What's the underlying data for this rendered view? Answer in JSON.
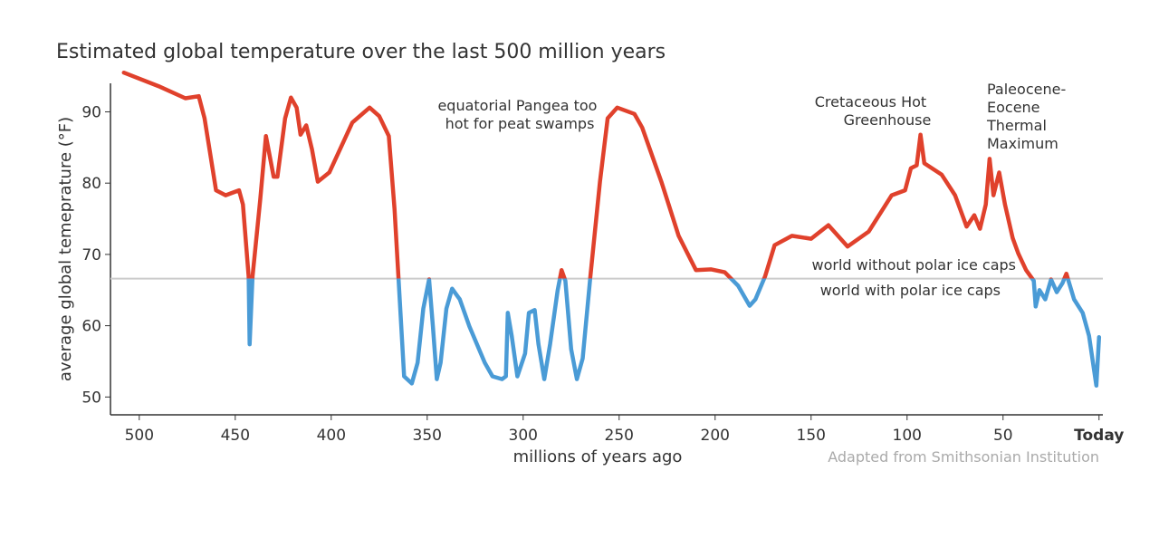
{
  "chart_data": {
    "type": "line",
    "title": "Estimated global temperature over the last 500 million years",
    "x_label": "millions of years ago",
    "y_label": "average global temeprature (°F)",
    "source": "Adapted from Smithsonian Institution",
    "xlim": [
      515,
      -2
    ],
    "ylim": [
      47.5,
      94
    ],
    "xticks": [
      500,
      450,
      400,
      350,
      300,
      250,
      200,
      150,
      100,
      50,
      {
        "value": 0,
        "label": "Today"
      }
    ],
    "yticks": [
      50,
      60,
      70,
      80,
      90
    ],
    "threshold": 66.6,
    "threshold_labels": [
      "world without polar ice caps",
      "world with polar ice caps"
    ],
    "color_above": "#e0412c",
    "color_below": "#4a9bd6",
    "annotations": [
      [
        "equatorial Pangea too",
        "hot for peat swamps"
      ],
      [
        "Cretaceous Hot",
        "Greenhouse"
      ],
      [
        "Paleocene-",
        "Eocene",
        "Thermal",
        "Maximum"
      ]
    ],
    "x": [
      508,
      490,
      476,
      469,
      466,
      460,
      455,
      448,
      446,
      443,
      442.5,
      441,
      437,
      434,
      430,
      428,
      424,
      421,
      418,
      416,
      413,
      410,
      407,
      401,
      389,
      380,
      375,
      370,
      367,
      365,
      362,
      358,
      355,
      352,
      349,
      347,
      345,
      343,
      340,
      337,
      333,
      328,
      320,
      316,
      311,
      309,
      308,
      306,
      303,
      299,
      297,
      294,
      292,
      289,
      286,
      282,
      280,
      278,
      275,
      272,
      269,
      265,
      260,
      256,
      251,
      242,
      238,
      228,
      219,
      210,
      202,
      195,
      188,
      182,
      179,
      174,
      169,
      160,
      150,
      141,
      131,
      120,
      108,
      101,
      98,
      95,
      93,
      91,
      82,
      75,
      69,
      65,
      62,
      59,
      57,
      55,
      52,
      49,
      45,
      42,
      38,
      34,
      33,
      31,
      28,
      25,
      22,
      19,
      17,
      13,
      8.5,
      5.2,
      1.4,
      0
    ],
    "values": [
      95.5,
      93.6,
      91.9,
      92.2,
      89.1,
      79,
      78.3,
      79,
      77,
      66.9,
      57.4,
      66.9,
      77.7,
      86.6,
      80.9,
      80.9,
      89.1,
      92,
      90.6,
      86.8,
      88.1,
      84.7,
      80.2,
      81.5,
      88.5,
      90.6,
      89.4,
      86.6,
      76.4,
      66.9,
      52.9,
      51.9,
      54.8,
      62.4,
      66.5,
      59.9,
      52.5,
      54.8,
      62.4,
      65.2,
      63.7,
      59.9,
      54.8,
      52.9,
      52.5,
      52.9,
      61.8,
      58.6,
      52.9,
      56.1,
      61.8,
      62.2,
      57.4,
      52.5,
      57.4,
      65,
      67.8,
      66.3,
      56.7,
      52.5,
      55.4,
      66.9,
      80.2,
      89.1,
      90.6,
      89.7,
      87.8,
      80.2,
      72.6,
      67.8,
      67.9,
      67.5,
      65.6,
      62.8,
      63.7,
      66.9,
      71.3,
      72.6,
      72.2,
      74.1,
      71.1,
      73.2,
      78.3,
      79,
      82.1,
      82.5,
      86.8,
      82.8,
      81.2,
      78.3,
      73.9,
      75.5,
      73.6,
      77,
      83.4,
      78.3,
      81.5,
      77,
      72.3,
      70.1,
      67.8,
      66.3,
      62.7,
      65,
      63.7,
      66.5,
      64.7,
      66,
      67.3,
      63.7,
      61.8,
      58.6,
      51.6,
      58.4
    ]
  }
}
